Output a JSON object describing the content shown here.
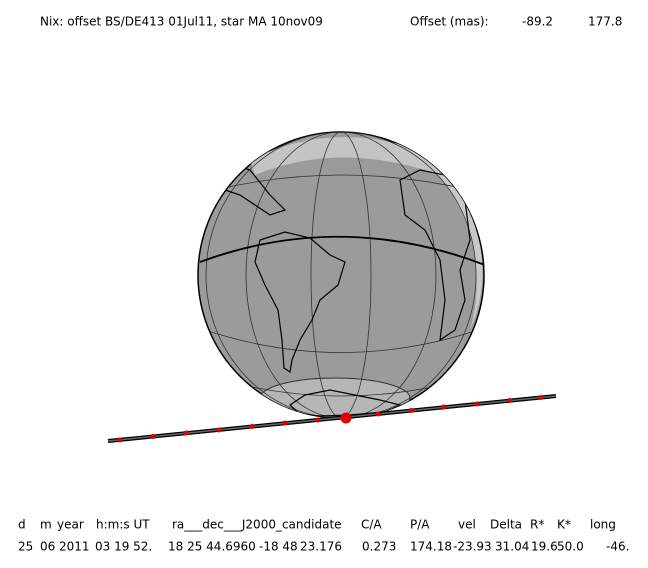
{
  "header": {
    "title": "Nix: offset BS/DE413 01Jul11, star MA 10nov09",
    "offset_label": "Offset (mas):",
    "offset_values": [
      "-89.2",
      "177.8"
    ]
  },
  "columns": {
    "headers": [
      "d",
      "m",
      "year",
      "h:m:s UT",
      "ra___dec___J2000_candidate",
      "C/A",
      "P/A",
      "vel",
      "Delta",
      "R*",
      "K*",
      "long"
    ],
    "values": [
      "25",
      "06",
      "2011",
      "03 19 52.",
      "18 25 44.6960",
      "-18 48",
      "23.176",
      "0.273",
      "174.18",
      "-23.93",
      "31.04",
      "19.6",
      "50.0",
      "-46."
    ]
  }
}
